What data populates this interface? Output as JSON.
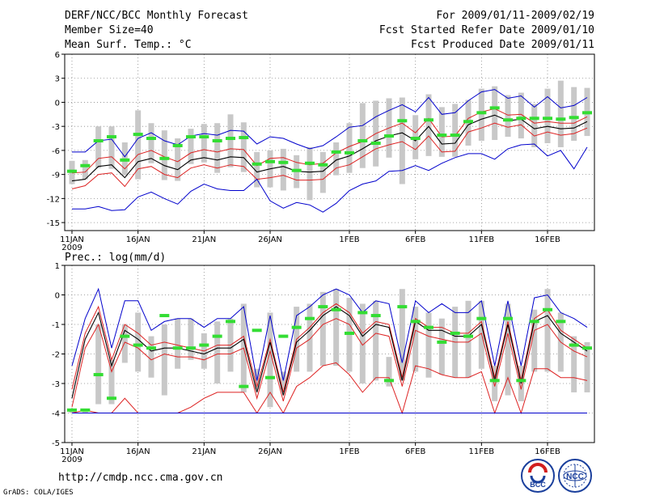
{
  "header": {
    "title": "DERF/NCC/BCC Monthly Forecast",
    "member_size": "Member Size=40",
    "variable": "Mean Surf. Temp.: °C",
    "period": "For 2009/01/11-2009/02/19",
    "refer_date": "Fcst Started Refer Date 2009/01/10",
    "produced_date": "Fcst Produced Date 2009/01/11"
  },
  "footer": {
    "url": "http://cmdp.ncc.cma.gov.cn",
    "credit": "GrADS: COLA/IGES",
    "logos": [
      "BCC",
      "NCC"
    ]
  },
  "colors": {
    "box": "#c8c8c8",
    "obs": "#33dd33",
    "mean": "#000000",
    "inner": "#dd2222",
    "outer": "#0000cc",
    "grid": "#888888"
  },
  "chart_data": [
    {
      "type": "line",
      "title": "Mean Surf. Temp.: °C",
      "ylabel": "",
      "ylim": [
        -16,
        6
      ],
      "yticks": [
        6,
        3,
        0,
        -3,
        -6,
        -9,
        -12,
        -15
      ],
      "x": [
        1,
        2,
        3,
        4,
        5,
        6,
        7,
        8,
        9,
        10,
        11,
        12,
        13,
        14,
        15,
        16,
        17,
        18,
        19,
        20,
        21,
        22,
        23,
        24,
        25,
        26,
        27,
        28,
        29,
        30,
        31,
        32,
        33,
        34,
        35,
        36,
        37,
        38,
        39,
        40
      ],
      "xticks": [
        {
          "x": 1,
          "label": "11JAN"
        },
        {
          "x": 6,
          "label": "16JAN"
        },
        {
          "x": 11,
          "label": "21JAN"
        },
        {
          "x": 16,
          "label": "26JAN"
        },
        {
          "x": 22,
          "label": "1FEB"
        },
        {
          "x": 27,
          "label": "6FEB"
        },
        {
          "x": 32,
          "label": "11FEB"
        },
        {
          "x": 37,
          "label": "16FEB"
        }
      ],
      "year_label": "2009",
      "series": [
        {
          "name": "max",
          "style": "outer",
          "values": [
            -6.2,
            -6.2,
            -4.8,
            -4.6,
            -6.8,
            -4.5,
            -3.8,
            -4.8,
            -5.3,
            -4.2,
            -3.9,
            -4.1,
            -3.5,
            -3.6,
            -5.2,
            -4.3,
            -4.5,
            -5.2,
            -5.8,
            -5.4,
            -4.3,
            -3.1,
            -2.9,
            -1.8,
            -1.0,
            -0.3,
            -1.2,
            0.6,
            -1.5,
            -1.3,
            0.2,
            1.3,
            1.6,
            0.5,
            0.8,
            -0.6,
            0.7,
            -0.7,
            -0.4,
            0.6
          ]
        },
        {
          "name": "upper",
          "style": "inner",
          "values": [
            -8.8,
            -8.7,
            -7.0,
            -6.8,
            -8.3,
            -6.5,
            -6.0,
            -6.8,
            -7.4,
            -6.3,
            -5.9,
            -6.2,
            -5.8,
            -5.9,
            -7.9,
            -7.0,
            -6.9,
            -7.5,
            -7.8,
            -7.6,
            -6.3,
            -5.5,
            -4.9,
            -3.9,
            -3.2,
            -2.6,
            -3.8,
            -2.0,
            -4.3,
            -4.2,
            -2.0,
            -1.2,
            -0.8,
            -1.6,
            -1.5,
            -2.6,
            -2.4,
            -2.6,
            -2.6,
            -1.8
          ]
        },
        {
          "name": "mean",
          "style": "mean",
          "values": [
            -9.8,
            -9.6,
            -8.0,
            -7.8,
            -9.4,
            -7.4,
            -7.0,
            -7.9,
            -8.4,
            -7.2,
            -6.9,
            -7.2,
            -6.8,
            -6.9,
            -8.7,
            -8.3,
            -8.0,
            -8.6,
            -8.7,
            -8.6,
            -7.2,
            -6.7,
            -5.8,
            -4.8,
            -4.2,
            -3.8,
            -4.8,
            -3.0,
            -5.2,
            -5.1,
            -2.8,
            -2.1,
            -1.6,
            -2.3,
            -2.1,
            -3.3,
            -3.0,
            -3.3,
            -3.2,
            -2.4
          ]
        },
        {
          "name": "lower",
          "style": "inner",
          "values": [
            -10.8,
            -10.4,
            -9.0,
            -8.8,
            -10.5,
            -8.3,
            -8.0,
            -9.0,
            -9.4,
            -8.2,
            -7.8,
            -8.2,
            -7.8,
            -8.0,
            -9.6,
            -9.4,
            -9.1,
            -9.7,
            -9.7,
            -9.6,
            -8.2,
            -7.8,
            -6.8,
            -5.8,
            -5.3,
            -4.9,
            -5.9,
            -4.2,
            -6.2,
            -6.1,
            -3.7,
            -3.2,
            -2.6,
            -3.1,
            -2.8,
            -4.2,
            -3.7,
            -4.1,
            -3.9,
            -3.2
          ]
        },
        {
          "name": "min",
          "style": "outer",
          "values": [
            -13.3,
            -13.3,
            -13.0,
            -13.5,
            -13.4,
            -11.8,
            -11.2,
            -12.0,
            -12.7,
            -11.1,
            -10.2,
            -10.8,
            -11.0,
            -11.0,
            -9.6,
            -12.3,
            -13.2,
            -12.5,
            -12.8,
            -13.7,
            -12.6,
            -11.0,
            -10.2,
            -9.8,
            -8.6,
            -8.5,
            -7.9,
            -8.5,
            -7.6,
            -6.9,
            -6.4,
            -6.4,
            -7.1,
            -5.8,
            -5.3,
            -5.2,
            -6.7,
            -6.0,
            -8.3,
            -5.6
          ]
        },
        {
          "name": "obs",
          "style": "obs",
          "values": [
            -8.6,
            -7.9,
            -4.8,
            -4.3,
            -7.2,
            -4.0,
            -4.5,
            -7.0,
            -5.4,
            -4.3,
            -4.3,
            -4.8,
            -4.5,
            -4.4,
            -7.7,
            -7.4,
            -7.5,
            -8.5,
            -7.6,
            -7.8,
            -6.2,
            -6.3,
            -4.8,
            -5.1,
            -4.2,
            -2.3,
            -4.5,
            -2.2,
            -4.1,
            -4.1,
            -2.4,
            -1.3,
            -0.7,
            -2.2,
            -2.0,
            -2.0,
            -2.0,
            -2.1,
            -1.9,
            -1.3
          ]
        },
        {
          "name": "box_top",
          "style": "box",
          "values": [
            -7.3,
            -7.2,
            -3.0,
            -3.0,
            -5.0,
            -1.0,
            -2.6,
            -3.5,
            -4.5,
            -3.3,
            -2.7,
            -2.6,
            -1.5,
            -2.5,
            -6.2,
            -6.0,
            -5.8,
            -6.6,
            -5.6,
            -6.2,
            -5.0,
            -2.6,
            -0.1,
            0.2,
            0.5,
            0.6,
            -1.6,
            1.0,
            -0.6,
            -0.2,
            0.3,
            1.7,
            2.0,
            0.9,
            1.2,
            -0.2,
            1.7,
            2.7,
            1.9,
            1.8
          ]
        },
        {
          "name": "box_bottom",
          "style": "box",
          "values": [
            -10.2,
            -9.6,
            -8.2,
            -8.3,
            -9.1,
            -9.6,
            -7.6,
            -9.7,
            -9.8,
            -7.7,
            -7.5,
            -8.8,
            -8.1,
            -8.7,
            -10.6,
            -10.6,
            -11.0,
            -10.7,
            -12.2,
            -11.3,
            -9.1,
            -8.8,
            -8.2,
            -8.0,
            -6.9,
            -10.2,
            -7.1,
            -6.7,
            -6.8,
            -6.8,
            -5.4,
            -4.8,
            -4.7,
            -4.3,
            -4.5,
            -5.6,
            -5.1,
            -5.6,
            -4.8,
            -4.2
          ]
        }
      ]
    },
    {
      "type": "line",
      "title": "Prec.: log(mm/d)",
      "ylabel": "",
      "ylim": [
        -5,
        1
      ],
      "yticks": [
        1,
        0,
        -1,
        -2,
        -3,
        -4,
        -5
      ],
      "x": [
        1,
        2,
        3,
        4,
        5,
        6,
        7,
        8,
        9,
        10,
        11,
        12,
        13,
        14,
        15,
        16,
        17,
        18,
        19,
        20,
        21,
        22,
        23,
        24,
        25,
        26,
        27,
        28,
        29,
        30,
        31,
        32,
        33,
        34,
        35,
        36,
        37,
        38,
        39,
        40
      ],
      "xticks": [
        {
          "x": 1,
          "label": "11JAN"
        },
        {
          "x": 6,
          "label": "16JAN"
        },
        {
          "x": 11,
          "label": "21JAN"
        },
        {
          "x": 16,
          "label": "26JAN"
        },
        {
          "x": 22,
          "label": "1FEB"
        },
        {
          "x": 27,
          "label": "6FEB"
        },
        {
          "x": 32,
          "label": "11FEB"
        },
        {
          "x": 37,
          "label": "16FEB"
        }
      ],
      "year_label": "2009",
      "series": [
        {
          "name": "max",
          "style": "outer",
          "values": [
            -2.4,
            -0.8,
            0.2,
            -1.8,
            -0.2,
            -0.2,
            -1.2,
            -0.9,
            -0.8,
            -0.8,
            -1.1,
            -0.8,
            -0.8,
            -0.4,
            -2.9,
            -0.7,
            -2.9,
            -0.7,
            -0.4,
            0.0,
            0.2,
            0.0,
            -0.6,
            -0.2,
            -0.3,
            -2.3,
            -0.2,
            -0.6,
            -0.3,
            -0.6,
            -0.6,
            -0.2,
            -2.4,
            -0.2,
            -2.4,
            -0.1,
            0.0,
            -0.6,
            -0.8,
            -1.1
          ]
        },
        {
          "name": "upper",
          "style": "inner",
          "values": [
            -3.2,
            -1.3,
            -0.4,
            -2.2,
            -1.0,
            -1.3,
            -1.7,
            -1.6,
            -1.7,
            -1.8,
            -1.9,
            -1.7,
            -1.7,
            -1.4,
            -3.1,
            -1.5,
            -3.3,
            -1.5,
            -1.1,
            -0.6,
            -0.3,
            -0.6,
            -1.3,
            -0.9,
            -1.0,
            -2.8,
            -0.8,
            -1.1,
            -1.1,
            -1.3,
            -1.3,
            -0.9,
            -2.8,
            -0.9,
            -2.9,
            -0.8,
            -0.5,
            -1.2,
            -1.5,
            -1.8
          ]
        },
        {
          "name": "mean",
          "style": "mean",
          "values": [
            -3.5,
            -1.5,
            -0.6,
            -2.4,
            -1.2,
            -1.5,
            -1.9,
            -1.8,
            -1.8,
            -1.9,
            -2.0,
            -1.8,
            -1.8,
            -1.5,
            -3.3,
            -1.6,
            -3.4,
            -1.6,
            -1.2,
            -0.7,
            -0.4,
            -0.7,
            -1.4,
            -1.0,
            -1.1,
            -2.9,
            -0.9,
            -1.2,
            -1.2,
            -1.4,
            -1.4,
            -1.0,
            -2.9,
            -1.0,
            -3.0,
            -0.9,
            -0.7,
            -1.3,
            -1.6,
            -1.9
          ]
        },
        {
          "name": "lower",
          "style": "inner",
          "values": [
            -3.8,
            -1.8,
            -1.0,
            -2.6,
            -1.6,
            -1.8,
            -2.2,
            -2.0,
            -2.1,
            -2.1,
            -2.2,
            -2.0,
            -2.0,
            -1.8,
            -3.5,
            -1.9,
            -3.6,
            -1.8,
            -1.5,
            -1.0,
            -0.8,
            -1.0,
            -1.7,
            -1.3,
            -1.4,
            -3.1,
            -1.2,
            -1.4,
            -1.5,
            -1.6,
            -1.6,
            -1.3,
            -3.1,
            -1.3,
            -3.2,
            -1.2,
            -1.0,
            -1.6,
            -1.9,
            -2.1
          ]
        },
        {
          "name": "low2",
          "style": "inner",
          "values": [
            -4.0,
            -3.9,
            -4.0,
            -4.0,
            -3.5,
            -4.0,
            -4.0,
            -4.0,
            -4.0,
            -3.8,
            -3.5,
            -3.3,
            -3.3,
            -3.3,
            -4.0,
            -3.3,
            -4.0,
            -3.1,
            -2.8,
            -2.4,
            -2.3,
            -2.7,
            -3.3,
            -2.8,
            -2.8,
            -4.0,
            -2.4,
            -2.5,
            -2.7,
            -2.8,
            -2.8,
            -2.6,
            -4.0,
            -2.8,
            -4.0,
            -2.5,
            -2.5,
            -2.8,
            -2.8,
            -2.9
          ]
        },
        {
          "name": "min",
          "style": "outer",
          "values": [
            -4.0,
            -4.0,
            -4.0,
            -4.0,
            -4.0,
            -4.0,
            -4.0,
            -4.0,
            -4.0,
            -4.0,
            -4.0,
            -4.0,
            -4.0,
            -4.0,
            -4.0,
            -4.0,
            -4.0,
            -4.0,
            -4.0,
            -4.0,
            -4.0,
            -4.0,
            -4.0,
            -4.0,
            -4.0,
            -4.0,
            -4.0,
            -4.0,
            -4.0,
            -4.0,
            -4.0,
            -4.0,
            -4.0,
            -4.0,
            -4.0,
            -4.0,
            -4.0,
            -4.0,
            -4.0,
            -4.0
          ]
        },
        {
          "name": "obs",
          "style": "obs",
          "values": [
            -3.9,
            -3.9,
            -2.7,
            -3.5,
            -1.4,
            -1.7,
            -1.8,
            -0.7,
            -1.8,
            -1.8,
            -1.7,
            -1.4,
            -0.9,
            -3.1,
            -1.2,
            -2.8,
            -1.4,
            -1.1,
            -0.8,
            -0.4,
            -0.5,
            -1.3,
            -0.6,
            -0.7,
            -2.9,
            -0.4,
            -0.9,
            -1.1,
            -1.6,
            -1.3,
            -1.4,
            -0.8,
            -2.9,
            -0.8,
            -2.9,
            -0.9,
            -0.5,
            -0.9,
            -1.7,
            -1.8
          ]
        },
        {
          "name": "box_top",
          "style": "box",
          "values": [
            -3.9,
            -3.9,
            -1.0,
            -2.2,
            -1.0,
            -0.6,
            -1.4,
            -1.0,
            -0.8,
            -0.8,
            -1.3,
            -0.9,
            -0.8,
            -0.3,
            -2.5,
            -0.6,
            -2.6,
            -0.4,
            -0.3,
            0.1,
            0.2,
            -0.1,
            -0.3,
            -0.2,
            -2.1,
            0.2,
            -0.4,
            -0.6,
            -0.8,
            -0.4,
            -0.2,
            -0.2,
            -2.4,
            -0.3,
            -2.4,
            -0.5,
            0.2,
            -0.6,
            -1.4,
            -1.6
          ]
        },
        {
          "name": "box_bottom",
          "style": "box",
          "values": [
            -4.0,
            -4.0,
            -3.7,
            -3.7,
            -2.3,
            -2.6,
            -2.8,
            -3.4,
            -2.5,
            -2.2,
            -2.5,
            -3.0,
            -2.6,
            -3.3,
            -3.2,
            -3.8,
            -3.2,
            -2.6,
            -2.6,
            -2.4,
            -2.4,
            -2.6,
            -3.0,
            -2.9,
            -3.1,
            -2.9,
            -2.6,
            -2.8,
            -2.7,
            -2.8,
            -2.8,
            -2.5,
            -3.6,
            -3.4,
            -3.6,
            -2.6,
            -2.6,
            -2.6,
            -3.3,
            -3.3
          ]
        }
      ]
    }
  ]
}
